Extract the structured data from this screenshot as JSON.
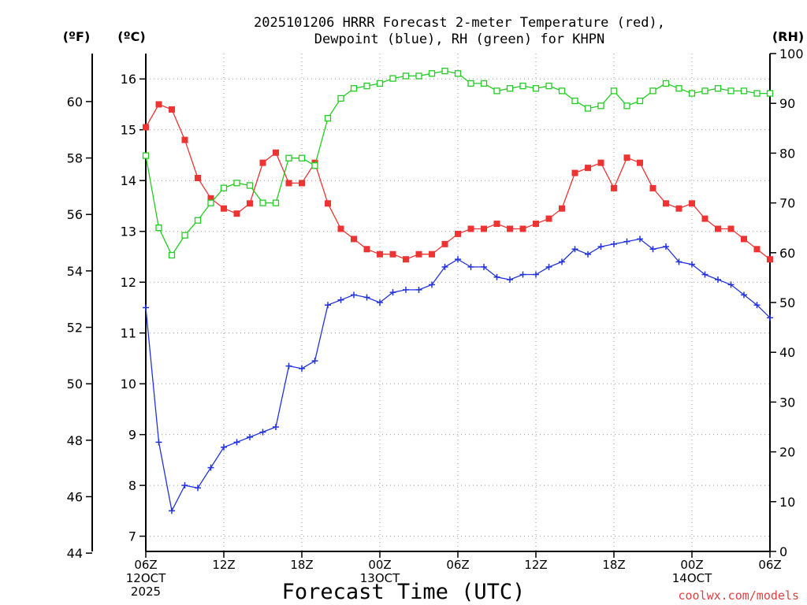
{
  "chart_data": {
    "type": "line",
    "title_line1": "2025101206 HRRR Forecast 2-meter Temperature (red),",
    "title_line2": "Dewpoint (blue), RH (green) for KHPN",
    "xlabel": "Forecast Time (UTC)",
    "left_outer_unit": "(ºF)",
    "left_inner_unit": "(ºC)",
    "right_unit": "(RH)",
    "credit": "coolwx.com/models",
    "grid": true,
    "x_hours": [
      0,
      1,
      2,
      3,
      4,
      5,
      6,
      7,
      8,
      9,
      10,
      11,
      12,
      13,
      14,
      15,
      16,
      17,
      18,
      19,
      20,
      21,
      22,
      23,
      24,
      25,
      26,
      27,
      28,
      29,
      30,
      31,
      32,
      33,
      34,
      35,
      36,
      37,
      38,
      39,
      40,
      41,
      42,
      43,
      44,
      45,
      46,
      47,
      48
    ],
    "x_range": [
      0,
      48
    ],
    "x_ticks": [
      {
        "hour": 0,
        "lines": [
          "06Z",
          "12OCT",
          "2025"
        ]
      },
      {
        "hour": 6,
        "lines": [
          "12Z"
        ]
      },
      {
        "hour": 12,
        "lines": [
          "18Z"
        ]
      },
      {
        "hour": 18,
        "lines": [
          "00Z",
          "13OCT"
        ]
      },
      {
        "hour": 24,
        "lines": [
          "06Z"
        ]
      },
      {
        "hour": 30,
        "lines": [
          "12Z"
        ]
      },
      {
        "hour": 36,
        "lines": [
          "18Z"
        ]
      },
      {
        "hour": 42,
        "lines": [
          "00Z",
          "14OCT"
        ]
      },
      {
        "hour": 48,
        "lines": [
          "06Z"
        ]
      }
    ],
    "celsius_axis": {
      "range": [
        6.7,
        16.5
      ],
      "ticks": [
        7,
        8,
        9,
        10,
        11,
        12,
        13,
        14,
        15,
        16
      ]
    },
    "fahrenheit_axis": {
      "range": [
        44.06,
        61.7
      ],
      "ticks": [
        44,
        46,
        48,
        50,
        52,
        54,
        56,
        58,
        60
      ]
    },
    "rh_axis": {
      "range": [
        0,
        100
      ],
      "ticks": [
        0,
        10,
        20,
        30,
        40,
        50,
        60,
        70,
        80,
        90,
        100
      ]
    },
    "series": [
      {
        "key": "temperature",
        "color": "#ee3333",
        "marker": "filled-square",
        "axis": "celsius",
        "values": [
          15.05,
          15.5,
          15.4,
          14.8,
          14.05,
          13.65,
          13.45,
          13.35,
          13.55,
          14.35,
          14.55,
          13.95,
          13.95,
          14.35,
          13.55,
          13.05,
          12.85,
          12.65,
          12.55,
          12.55,
          12.45,
          12.55,
          12.55,
          12.75,
          12.95,
          13.05,
          13.05,
          13.15,
          13.05,
          13.05,
          13.15,
          13.25,
          13.45,
          14.15,
          14.25,
          14.35,
          13.85,
          14.45,
          14.35,
          13.85,
          13.55,
          13.45,
          13.55,
          13.25,
          13.05,
          13.05,
          12.85,
          12.65,
          12.45
        ]
      },
      {
        "key": "dewpoint",
        "color": "#2233dd",
        "marker": "plus",
        "axis": "celsius",
        "values": [
          11.5,
          8.85,
          7.5,
          8.0,
          7.95,
          8.35,
          8.75,
          8.85,
          8.95,
          9.05,
          9.15,
          10.35,
          10.3,
          10.45,
          11.55,
          11.65,
          11.75,
          11.7,
          11.6,
          11.8,
          11.85,
          11.85,
          11.95,
          12.3,
          12.45,
          12.3,
          12.3,
          12.1,
          12.05,
          12.15,
          12.15,
          12.3,
          12.4,
          12.65,
          12.55,
          12.7,
          12.75,
          12.8,
          12.85,
          12.65,
          12.7,
          12.4,
          12.35,
          12.15,
          12.05,
          11.95,
          11.75,
          11.55,
          11.3
        ]
      },
      {
        "key": "rh",
        "color": "#22cc22",
        "marker": "open-square",
        "axis": "rh",
        "values": [
          79.5,
          65,
          59.5,
          63.5,
          66.5,
          70,
          73,
          74,
          73.5,
          70,
          70,
          79,
          79,
          77.5,
          87,
          91,
          93,
          93.5,
          94,
          95,
          95.5,
          95.5,
          96,
          96.5,
          96,
          94,
          94,
          92.5,
          93,
          93.5,
          93,
          93.5,
          92.5,
          90.5,
          89,
          89.5,
          92.5,
          89.5,
          90.5,
          92.5,
          94,
          93,
          92,
          92.5,
          93,
          92.5,
          92.5,
          92,
          92
        ]
      }
    ]
  }
}
